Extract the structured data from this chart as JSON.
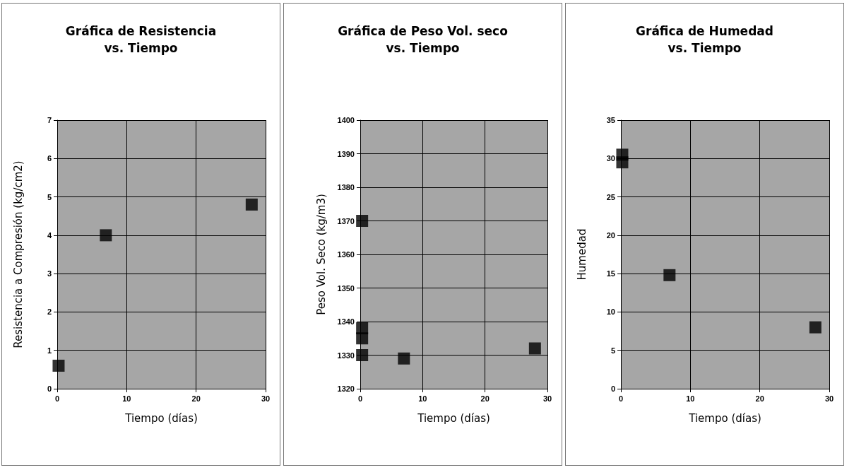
{
  "chart_data": [
    {
      "type": "scatter",
      "title": "Gráfica de Resistencia\nvs. Tiempo",
      "xlabel": "Tiempo (días)",
      "ylabel": "Resistencia a Compresión (kg/cm2)",
      "series": [
        {
          "color": "#000000",
          "x": [
            0.2,
            7,
            28
          ],
          "values": [
            0.6,
            4.0,
            4.8
          ]
        }
      ],
      "xlim": [
        0,
        30
      ],
      "xticks": [
        0,
        10,
        20,
        30
      ],
      "ylim": [
        0,
        7
      ],
      "yticks": [
        0,
        1,
        2,
        3,
        4,
        5,
        6,
        7
      ],
      "grid": true,
      "marker": "square"
    },
    {
      "type": "scatter",
      "title": "Gráfica de Peso Vol. seco\nvs. Tiempo",
      "xlabel": "Tiempo (días)",
      "ylabel": "Peso Vol. Seco (kg/m3)",
      "series": [
        {
          "color": "#000000",
          "x": [
            0.3,
            0.3,
            0.3,
            0.3,
            7,
            28
          ],
          "values": [
            1370,
            1338,
            1335,
            1330,
            1329,
            1332
          ]
        }
      ],
      "xlim": [
        0,
        30
      ],
      "xticks": [
        0,
        10,
        20,
        30
      ],
      "ylim": [
        1320,
        1400
      ],
      "yticks": [
        1320,
        1330,
        1340,
        1350,
        1360,
        1370,
        1380,
        1390,
        1400
      ],
      "grid": true,
      "marker": "square"
    },
    {
      "type": "scatter",
      "title": "Gráfica de Humedad\nvs. Tiempo",
      "xlabel": "Tiempo (días)",
      "ylabel": "Humedad",
      "series": [
        {
          "color": "#000000",
          "x": [
            0.2,
            0.2,
            7,
            28
          ],
          "values": [
            30.5,
            29.5,
            14.8,
            8
          ]
        }
      ],
      "xlim": [
        0,
        30
      ],
      "xticks": [
        0,
        10,
        20,
        30
      ],
      "ylim": [
        0,
        35
      ],
      "yticks": [
        0,
        5,
        10,
        15,
        20,
        25,
        30,
        35
      ],
      "grid": true,
      "marker": "square"
    }
  ]
}
